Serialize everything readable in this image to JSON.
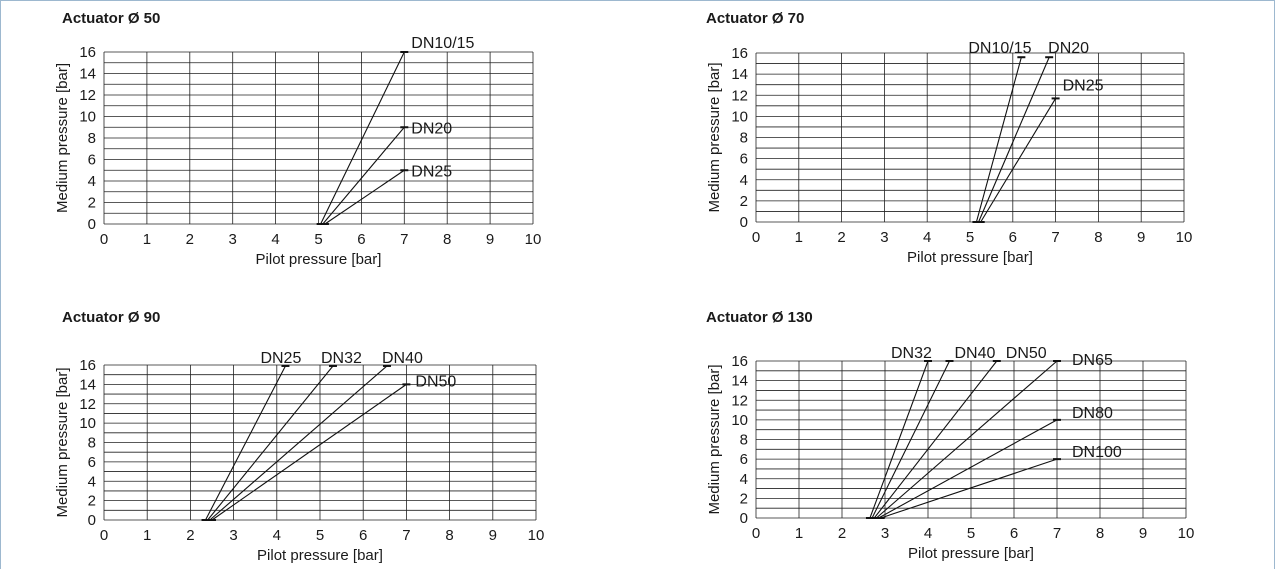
{
  "page": {
    "border_color": "#9db8cf"
  },
  "chart_data": [
    {
      "type": "line",
      "title": "Actuator Ø 50",
      "xlabel": "Pilot pressure [bar]",
      "ylabel": "Medium pressure [bar]",
      "xlim": [
        0,
        10
      ],
      "ylim": [
        0,
        16
      ],
      "xticks": [
        "0",
        "1",
        "2",
        "3",
        "4",
        "5",
        "6",
        "7",
        "8",
        "9",
        "10"
      ],
      "yticks": [
        "0",
        "2",
        "4",
        "6",
        "8",
        "10",
        "12",
        "14",
        "16"
      ],
      "grid": true,
      "series": [
        {
          "name": "DN10/15",
          "x": [
            5.05,
            7.0
          ],
          "y": [
            0,
            16
          ]
        },
        {
          "name": "DN20",
          "x": [
            5.1,
            7.0
          ],
          "y": [
            0,
            9
          ]
        },
        {
          "name": "DN25",
          "x": [
            5.15,
            7.0
          ],
          "y": [
            0,
            5
          ]
        }
      ]
    },
    {
      "type": "line",
      "title": "Actuator Ø 70",
      "xlabel": "Pilot pressure [bar]",
      "ylabel": "Medium pressure [bar]",
      "xlim": [
        0,
        10
      ],
      "ylim": [
        0,
        16
      ],
      "xticks": [
        "0",
        "1",
        "2",
        "3",
        "4",
        "5",
        "6",
        "7",
        "8",
        "9",
        "10"
      ],
      "yticks": [
        "0",
        "2",
        "4",
        "6",
        "8",
        "10",
        "12",
        "14",
        "16"
      ],
      "grid": true,
      "series": [
        {
          "name": "DN10/15",
          "x": [
            5.15,
            6.2
          ],
          "y": [
            0,
            15.6
          ]
        },
        {
          "name": "DN20",
          "x": [
            5.2,
            6.85
          ],
          "y": [
            0,
            15.6
          ]
        },
        {
          "name": "DN25",
          "x": [
            5.25,
            7.0
          ],
          "y": [
            0,
            11.7
          ]
        }
      ]
    },
    {
      "type": "line",
      "title": "Actuator Ø 90",
      "xlabel": "Pilot pressure [bar]",
      "ylabel": "Medium pressure [bar]",
      "xlim": [
        0,
        10
      ],
      "ylim": [
        0,
        16
      ],
      "xticks": [
        "0",
        "1",
        "2",
        "3",
        "4",
        "5",
        "6",
        "7",
        "8",
        "9",
        "10"
      ],
      "yticks": [
        "0",
        "2",
        "4",
        "6",
        "8",
        "10",
        "12",
        "14",
        "16"
      ],
      "grid": true,
      "series": [
        {
          "name": "DN25",
          "x": [
            2.35,
            4.2
          ],
          "y": [
            0,
            15.9
          ]
        },
        {
          "name": "DN32",
          "x": [
            2.4,
            5.3
          ],
          "y": [
            0,
            15.9
          ]
        },
        {
          "name": "DN40",
          "x": [
            2.45,
            6.55
          ],
          "y": [
            0,
            15.9
          ]
        },
        {
          "name": "DN50",
          "x": [
            2.5,
            7.0
          ],
          "y": [
            0,
            14
          ]
        }
      ]
    },
    {
      "type": "line",
      "title": "Actuator Ø 130",
      "xlabel": "Pilot pressure [bar]",
      "ylabel": "Medium pressure [bar]",
      "xlim": [
        0,
        10
      ],
      "ylim": [
        0,
        16
      ],
      "xticks": [
        "0",
        "1",
        "2",
        "3",
        "4",
        "5",
        "6",
        "7",
        "8",
        "9",
        "10"
      ],
      "yticks": [
        "0",
        "2",
        "4",
        "6",
        "8",
        "10",
        "12",
        "14",
        "16"
      ],
      "grid": true,
      "series": [
        {
          "name": "DN32",
          "x": [
            2.65,
            4.0
          ],
          "y": [
            0,
            16
          ]
        },
        {
          "name": "DN40",
          "x": [
            2.7,
            4.5
          ],
          "y": [
            0,
            16
          ]
        },
        {
          "name": "DN50",
          "x": [
            2.75,
            5.6
          ],
          "y": [
            0,
            16
          ]
        },
        {
          "name": "DN65",
          "x": [
            2.8,
            7.0
          ],
          "y": [
            0,
            16
          ]
        },
        {
          "name": "DN80",
          "x": [
            2.85,
            7.0
          ],
          "y": [
            0,
            10
          ]
        },
        {
          "name": "DN100",
          "x": [
            2.9,
            7.0
          ],
          "y": [
            0,
            6
          ]
        }
      ]
    }
  ]
}
